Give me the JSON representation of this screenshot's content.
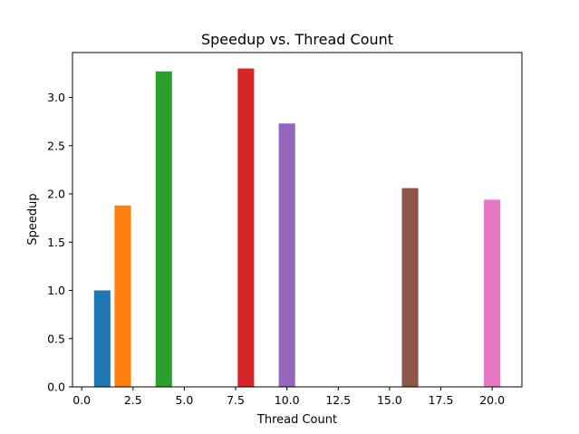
{
  "chart_data": {
    "type": "bar",
    "title": "Speedup vs. Thread Count",
    "xlabel": "Thread Count",
    "ylabel": "Speedup",
    "xlim": [
      -0.45,
      21.45
    ],
    "ylim": [
      0,
      3.465
    ],
    "xticks": [
      0,
      2.5,
      5,
      7.5,
      10,
      12.5,
      15,
      17.5,
      20
    ],
    "xtick_labels": [
      "0.0",
      "2.5",
      "5.0",
      "7.5",
      "10.0",
      "12.5",
      "15.0",
      "17.5",
      "20.0"
    ],
    "yticks": [
      0,
      0.5,
      1,
      1.5,
      2,
      2.5,
      3
    ],
    "ytick_labels": [
      "0.0",
      "0.5",
      "1.0",
      "1.5",
      "2.0",
      "2.5",
      "3.0"
    ],
    "bar_width": 0.8,
    "grid": false,
    "legend": "none",
    "x": [
      1,
      2,
      4,
      8,
      10,
      16,
      20
    ],
    "values": [
      1.0,
      1.88,
      3.27,
      3.3,
      2.73,
      2.06,
      1.94
    ],
    "colors": [
      "#1f77b4",
      "#ff7f0e",
      "#2ca02c",
      "#d62728",
      "#9467bd",
      "#8c564b",
      "#e377c2"
    ]
  }
}
